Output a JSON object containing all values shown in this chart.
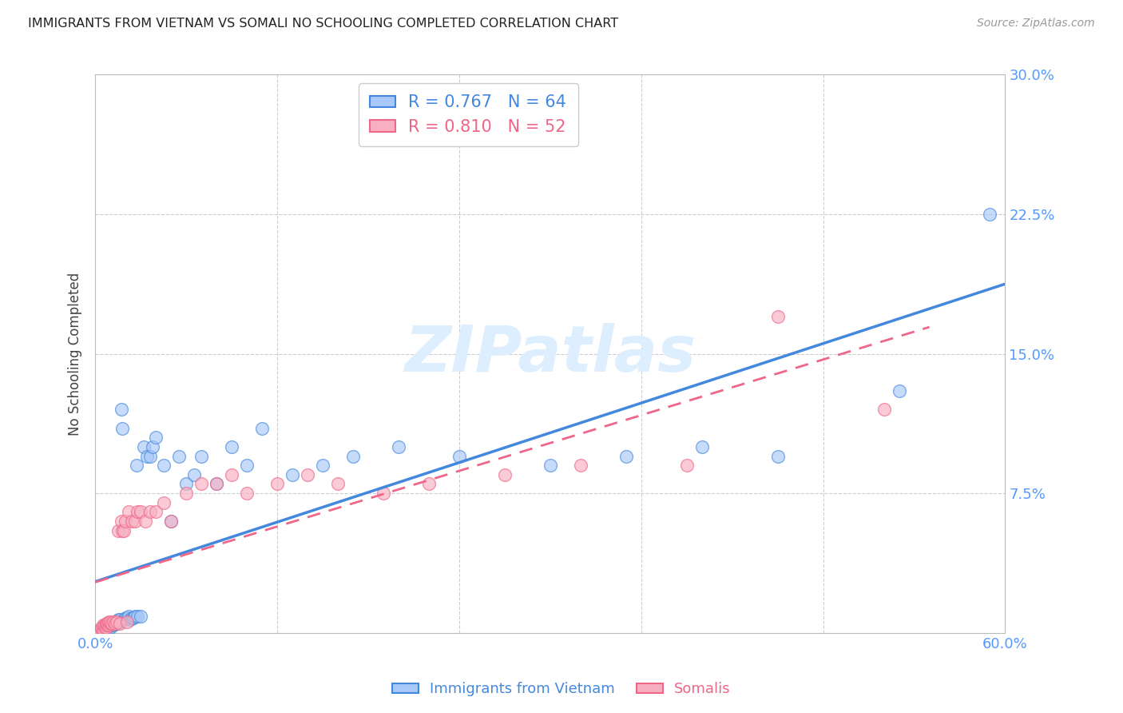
{
  "title": "IMMIGRANTS FROM VIETNAM VS SOMALI NO SCHOOLING COMPLETED CORRELATION CHART",
  "source": "Source: ZipAtlas.com",
  "ylabel": "No Schooling Completed",
  "xlim": [
    0.0,
    0.6
  ],
  "ylim": [
    0.0,
    0.3
  ],
  "xticks": [
    0.0,
    0.12,
    0.24,
    0.36,
    0.48,
    0.6
  ],
  "xticklabels": [
    "0.0%",
    "",
    "",
    "",
    "",
    "60.0%"
  ],
  "yticks": [
    0.0,
    0.075,
    0.15,
    0.225,
    0.3
  ],
  "yticklabels": [
    "",
    "7.5%",
    "15.0%",
    "22.5%",
    "30.0%"
  ],
  "grid_color": "#c8c8c8",
  "background_color": "#ffffff",
  "title_color": "#222222",
  "axis_label_color": "#444444",
  "tick_color": "#5599ff",
  "legend_R1": "R = 0.767",
  "legend_N1": "N = 64",
  "legend_R2": "R = 0.810",
  "legend_N2": "N = 52",
  "color_vietnam": "#a8c8f8",
  "color_somali": "#f8b0c0",
  "color_line_vietnam": "#4488dd",
  "color_line_somali": "#ee6688",
  "watermark_color": "#ddeeff",
  "vietnam_x": [
    0.003,
    0.004,
    0.005,
    0.005,
    0.006,
    0.006,
    0.007,
    0.007,
    0.008,
    0.008,
    0.009,
    0.009,
    0.01,
    0.01,
    0.011,
    0.011,
    0.012,
    0.012,
    0.013,
    0.013,
    0.014,
    0.015,
    0.015,
    0.016,
    0.016,
    0.017,
    0.018,
    0.019,
    0.02,
    0.021,
    0.022,
    0.023,
    0.024,
    0.025,
    0.026,
    0.027,
    0.028,
    0.03,
    0.032,
    0.034,
    0.036,
    0.038,
    0.04,
    0.045,
    0.05,
    0.055,
    0.06,
    0.065,
    0.07,
    0.08,
    0.09,
    0.1,
    0.11,
    0.13,
    0.15,
    0.17,
    0.2,
    0.24,
    0.3,
    0.35,
    0.4,
    0.45,
    0.53,
    0.59
  ],
  "vietnam_y": [
    0.001,
    0.002,
    0.002,
    0.003,
    0.002,
    0.003,
    0.003,
    0.004,
    0.003,
    0.004,
    0.003,
    0.004,
    0.003,
    0.005,
    0.004,
    0.005,
    0.004,
    0.005,
    0.005,
    0.006,
    0.005,
    0.006,
    0.007,
    0.006,
    0.007,
    0.12,
    0.11,
    0.007,
    0.008,
    0.008,
    0.009,
    0.007,
    0.008,
    0.008,
    0.009,
    0.09,
    0.009,
    0.009,
    0.1,
    0.095,
    0.095,
    0.1,
    0.105,
    0.09,
    0.06,
    0.095,
    0.08,
    0.085,
    0.095,
    0.08,
    0.1,
    0.09,
    0.11,
    0.085,
    0.09,
    0.095,
    0.1,
    0.095,
    0.09,
    0.095,
    0.1,
    0.095,
    0.13,
    0.225
  ],
  "somali_x": [
    0.002,
    0.003,
    0.004,
    0.004,
    0.005,
    0.005,
    0.006,
    0.006,
    0.007,
    0.007,
    0.008,
    0.008,
    0.009,
    0.009,
    0.01,
    0.01,
    0.011,
    0.012,
    0.013,
    0.014,
    0.015,
    0.016,
    0.017,
    0.018,
    0.019,
    0.02,
    0.021,
    0.022,
    0.024,
    0.026,
    0.028,
    0.03,
    0.033,
    0.036,
    0.04,
    0.045,
    0.05,
    0.06,
    0.07,
    0.08,
    0.09,
    0.1,
    0.12,
    0.14,
    0.16,
    0.19,
    0.22,
    0.27,
    0.32,
    0.39,
    0.45,
    0.52
  ],
  "somali_y": [
    0.001,
    0.001,
    0.002,
    0.003,
    0.002,
    0.004,
    0.003,
    0.004,
    0.003,
    0.005,
    0.004,
    0.005,
    0.004,
    0.006,
    0.005,
    0.006,
    0.005,
    0.006,
    0.005,
    0.006,
    0.055,
    0.005,
    0.06,
    0.055,
    0.055,
    0.06,
    0.006,
    0.065,
    0.06,
    0.06,
    0.065,
    0.065,
    0.06,
    0.065,
    0.065,
    0.07,
    0.06,
    0.075,
    0.08,
    0.08,
    0.085,
    0.075,
    0.08,
    0.085,
    0.08,
    0.075,
    0.08,
    0.085,
    0.09,
    0.09,
    0.17,
    0.12
  ],
  "viet_line_x0": 0.0,
  "viet_line_x1": 0.6,
  "viet_line_y0": 0.002,
  "viet_line_y1": 0.225,
  "somali_line_x0": 0.0,
  "somali_line_x1": 0.55,
  "somali_line_y0": 0.002,
  "somali_line_y1": 0.16
}
